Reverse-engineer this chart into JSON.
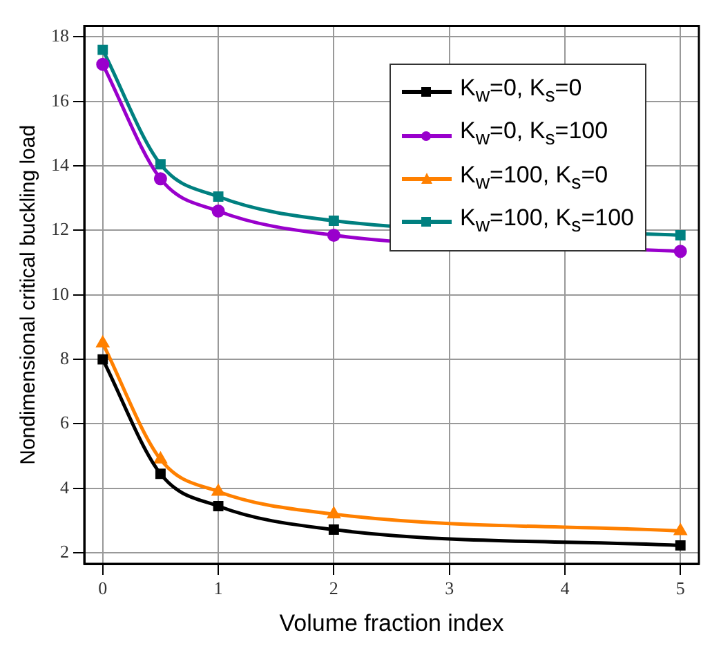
{
  "chart_data": {
    "type": "line",
    "xlabel": "Volume fraction index",
    "ylabel": "Nondimensional critical buckling load",
    "x": [
      0,
      0.5,
      1,
      2,
      5
    ],
    "series": [
      {
        "name": "K$_{w}$=0, K$_{s}$=0",
        "color": "#000000",
        "marker": "square",
        "values": [
          8.0,
          4.45,
          3.45,
          2.72,
          2.23
        ]
      },
      {
        "name": "K$_{w}$=0, K$_{s}$=100",
        "color": "#9900cc",
        "marker": "circle",
        "values": [
          17.15,
          13.6,
          12.6,
          11.85,
          11.35
        ]
      },
      {
        "name": "K$_{w}$=100, K$_{s}$=0",
        "color": "#ff8000",
        "marker": "triangle",
        "values": [
          8.5,
          4.9,
          3.9,
          3.2,
          2.68
        ]
      },
      {
        "name": "K$_{w}$=100, K$_{s}$=100",
        "color": "#008080",
        "marker": "square",
        "values": [
          17.6,
          14.05,
          13.05,
          12.3,
          11.85
        ]
      }
    ],
    "xlim": [
      -0.16,
      5.16
    ],
    "xticks": [
      0,
      1,
      2,
      3,
      4,
      5
    ],
    "ylim": [
      1.66,
      18.34
    ],
    "yticks": [
      2,
      4,
      6,
      8,
      10,
      12,
      14,
      16,
      18
    ],
    "grid": true,
    "legend": "top right",
    "line_style": "solid"
  }
}
